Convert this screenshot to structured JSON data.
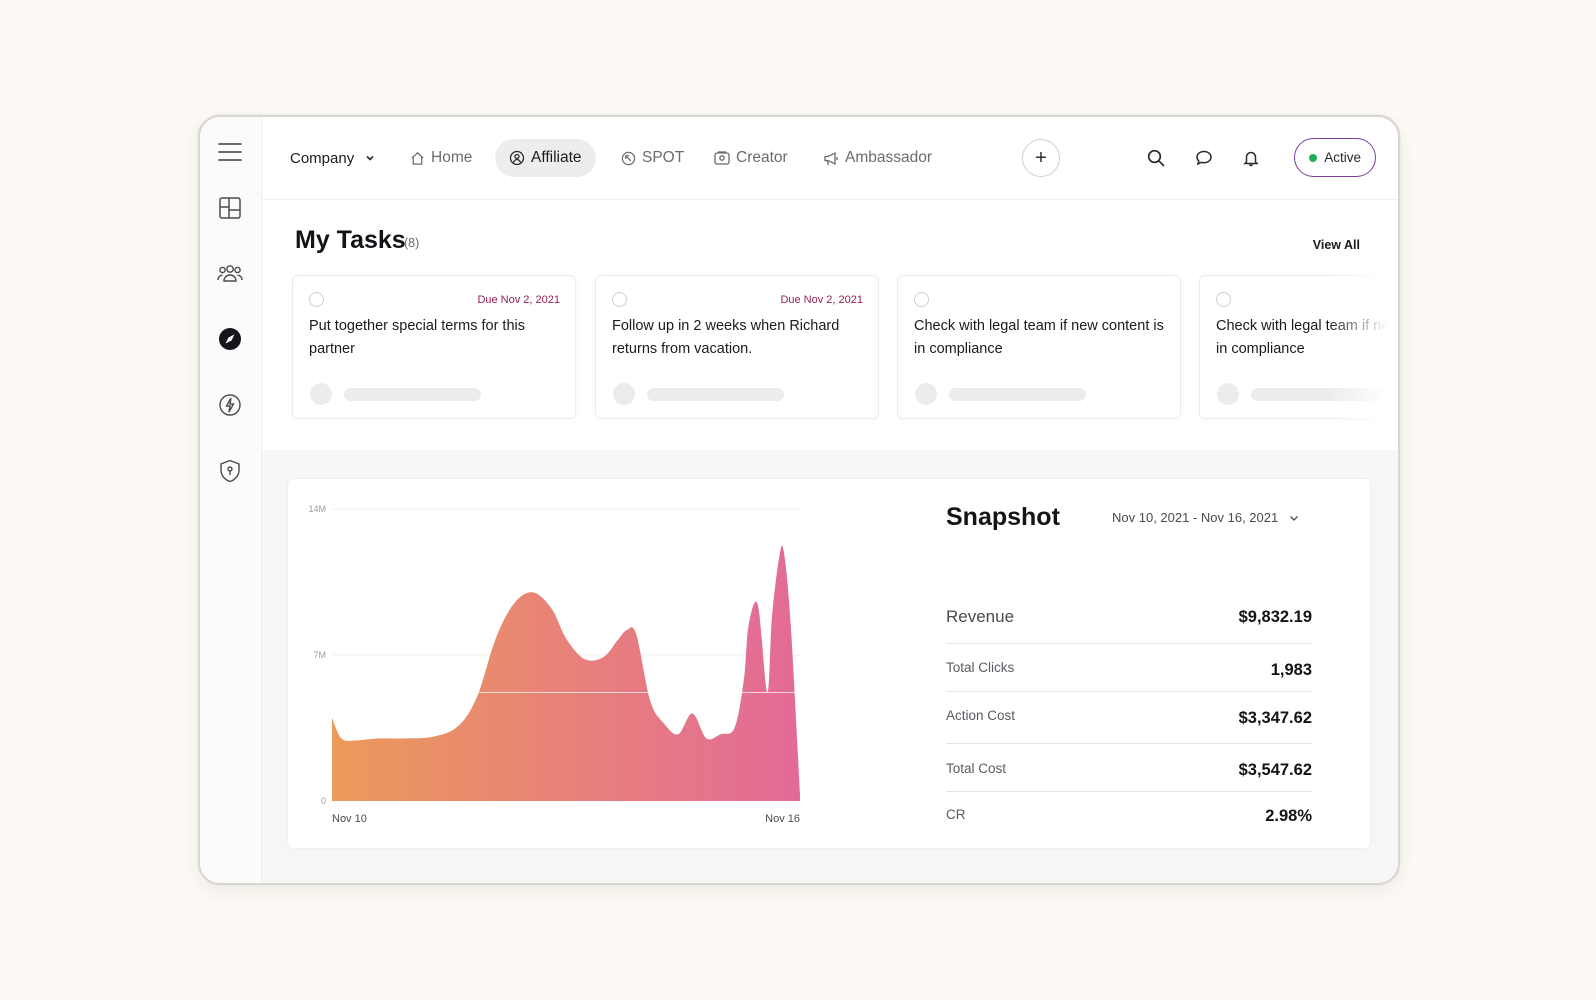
{
  "colors": {
    "accent": "#7a3fa0",
    "due_date": "#9a1f55",
    "status_active": "#1fae5e",
    "chart_gradient_start": "#ec9a5a",
    "chart_gradient_end": "#e36a98"
  },
  "sidebar": {
    "items": [
      {
        "name": "menu",
        "icon": "hamburger-icon"
      },
      {
        "name": "dashboard",
        "icon": "layout-grid-icon"
      },
      {
        "name": "partners",
        "icon": "users-icon"
      },
      {
        "name": "explore",
        "icon": "compass-icon",
        "active": true
      },
      {
        "name": "automation",
        "icon": "lightning-icon"
      },
      {
        "name": "security",
        "icon": "shield-icon"
      }
    ]
  },
  "header": {
    "company_label": "Company",
    "tabs": [
      {
        "label": "Home",
        "icon": "home-icon"
      },
      {
        "label": "Affiliate",
        "icon": "affiliate-icon",
        "active": true
      },
      {
        "label": "SPOT",
        "icon": "spot-icon"
      },
      {
        "label": "Creator",
        "icon": "creator-icon"
      },
      {
        "label": "Ambassador",
        "icon": "megaphone-icon"
      }
    ],
    "add_label": "+",
    "status_label": "Active"
  },
  "tasks": {
    "title": "My Tasks",
    "count": "(8)",
    "view_all": "View All",
    "items": [
      {
        "due": "Due Nov 2, 2021",
        "text": "Put together special terms for this partner"
      },
      {
        "due": "Due Nov 2, 2021",
        "text": "Follow up in 2 weeks when Richard returns from vacation."
      },
      {
        "due": "",
        "text": "Check with legal team if new content is in compliance"
      },
      {
        "due": "",
        "text": "Check with legal team if new content is in compliance"
      }
    ]
  },
  "snapshot": {
    "title": "Snapshot",
    "date_range": "Nov 10, 2021 - Nov 16, 2021",
    "metrics": [
      {
        "label": "Revenue",
        "value": "$9,832.19"
      },
      {
        "label": "Total Clicks",
        "value": "1,983"
      },
      {
        "label": "Action Cost",
        "value": "$3,347.62"
      },
      {
        "label": "Total Cost",
        "value": "$3,547.62"
      },
      {
        "label": "CR",
        "value": "2.98%"
      }
    ]
  },
  "chart_data": {
    "type": "area",
    "x_labels": [
      "Nov 10",
      "Nov 16"
    ],
    "y_ticks": [
      "14M",
      "7M",
      "0"
    ],
    "ylim": [
      0,
      14
    ],
    "y_unit": "M",
    "x": [
      0,
      0.02,
      0.05,
      0.1,
      0.16,
      0.22,
      0.27,
      0.31,
      0.35,
      0.39,
      0.43,
      0.47,
      0.5,
      0.54,
      0.58,
      0.61,
      0.63,
      0.65,
      0.68,
      0.71,
      0.74,
      0.77,
      0.8,
      0.83,
      0.86,
      0.88,
      0.89,
      0.91,
      0.93,
      0.94,
      0.955,
      0.965,
      0.98,
      1.0
    ],
    "y": [
      4.0,
      3.0,
      2.9,
      3.0,
      3.0,
      3.1,
      3.6,
      5.0,
      7.8,
      9.5,
      10.0,
      9.2,
      7.8,
      6.8,
      6.9,
      7.7,
      8.2,
      8.0,
      4.8,
      3.7,
      3.2,
      4.2,
      3.0,
      3.2,
      3.5,
      5.8,
      8.4,
      9.4,
      5.2,
      8.8,
      11.6,
      12.0,
      8.5,
      0.3
    ],
    "reference_line": 5.2,
    "grid": true
  }
}
